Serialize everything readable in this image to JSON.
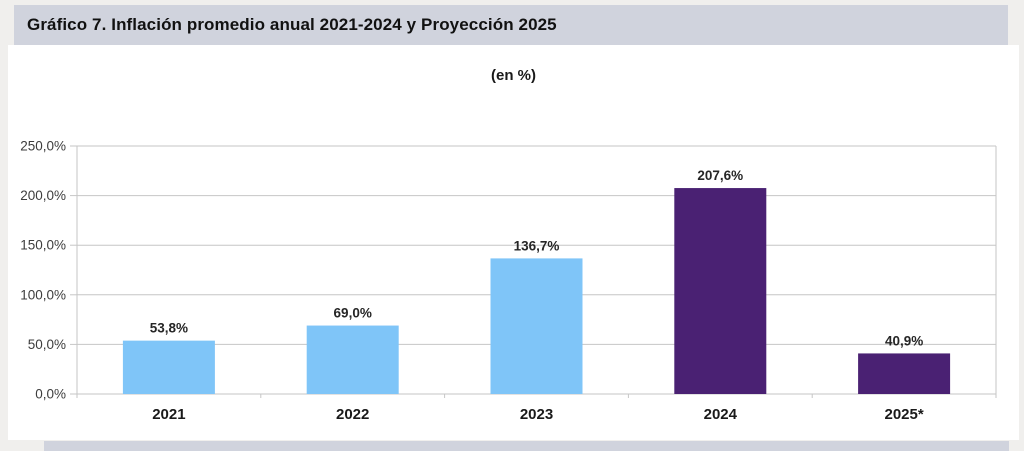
{
  "page": {
    "background_color": "#F0EFED",
    "banner_color": "#D0D3DD",
    "card_color": "#FFFFFF"
  },
  "header": {
    "title": "Gráfico 7. Inflación promedio anual 2021-2024 y Proyección 2025"
  },
  "chart_data": {
    "type": "bar",
    "title": "Gráfico 7. Inflación promedio anual 2021-2024 y Proyección 2025",
    "subtitle": "(en %)",
    "categories": [
      "2021",
      "2022",
      "2023",
      "2024",
      "2025*"
    ],
    "values": [
      53.8,
      69.0,
      136.7,
      207.6,
      40.9
    ],
    "value_labels": [
      "53,8%",
      "69,0%",
      "136,7%",
      "207,6%",
      "40,9%"
    ],
    "bar_colors": [
      "#7FC5F8",
      "#7FC5F8",
      "#7FC5F8",
      "#4A2173",
      "#4A2173"
    ],
    "y_ticks": [
      0,
      50,
      100,
      150,
      200,
      250
    ],
    "y_tick_labels": [
      "0,0%",
      "50,0%",
      "100,0%",
      "150,0%",
      "200,0%",
      "250,0%"
    ],
    "ylim": [
      0,
      250
    ],
    "xlabel": "",
    "ylabel": "",
    "grid": true,
    "legend": "none",
    "gridline_color": "#C6C6C6",
    "tick_label_color": "#3D3D3D",
    "value_label_color": "#262626",
    "category_label_color": "#1A1A1A"
  }
}
